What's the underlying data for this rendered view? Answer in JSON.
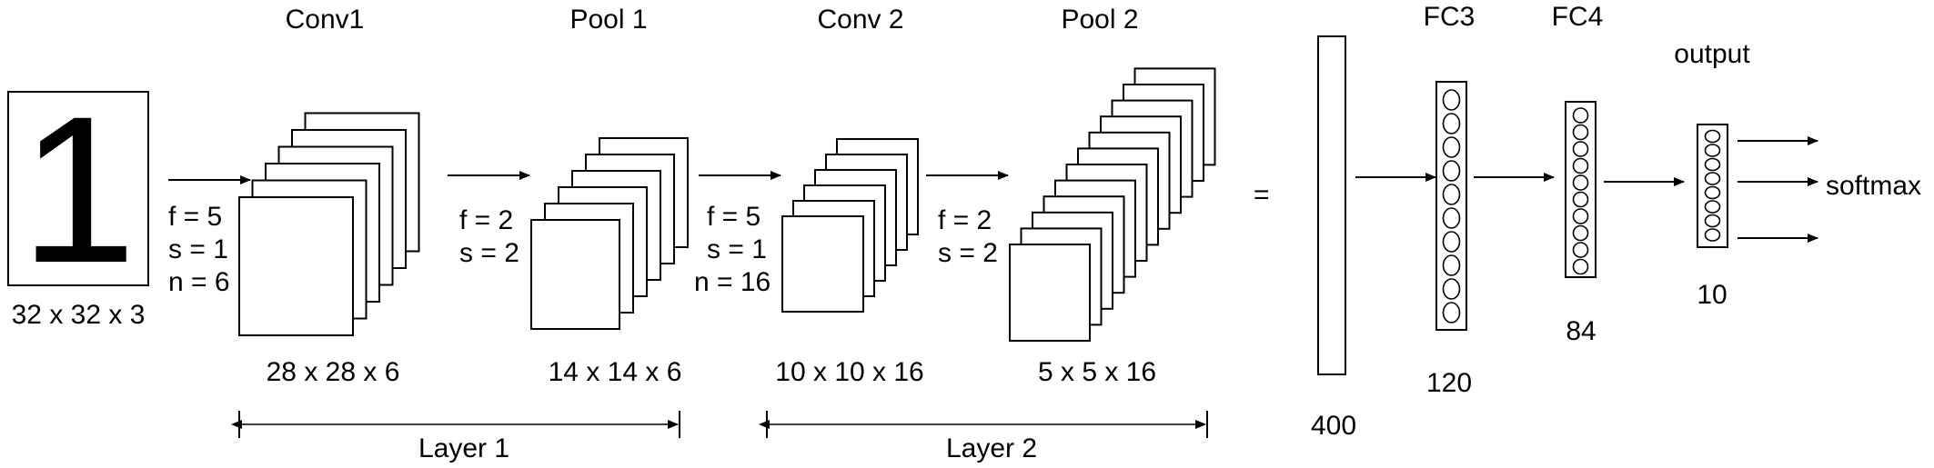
{
  "input": {
    "digit": "1",
    "dims": "32 x 32 x 3"
  },
  "stages": {
    "conv1": {
      "title": "Conv1",
      "params": [
        "f = 5",
        "s = 1",
        "n = 6"
      ],
      "dims": "28 x 28 x 6"
    },
    "pool1": {
      "title": "Pool 1",
      "params": [
        "f = 2",
        "s = 2"
      ],
      "dims": "14 x 14 x 6"
    },
    "conv2": {
      "title": "Conv 2",
      "params": [
        "f = 5",
        "s = 1",
        "n = 16"
      ],
      "dims": "10 x 10 x 16"
    },
    "pool2": {
      "title": "Pool 2",
      "params": [
        "f = 2",
        "s = 2"
      ],
      "dims": "5 x 5 x 16"
    }
  },
  "equals": "=",
  "flatten": {
    "size": "400"
  },
  "fc3": {
    "title": "FC3",
    "size": "120"
  },
  "fc4": {
    "title": "FC4",
    "size": "84"
  },
  "output": {
    "title": "output",
    "size": "10",
    "activation": "softmax"
  },
  "layers": {
    "layer1": "Layer 1",
    "layer2": "Layer 2"
  }
}
